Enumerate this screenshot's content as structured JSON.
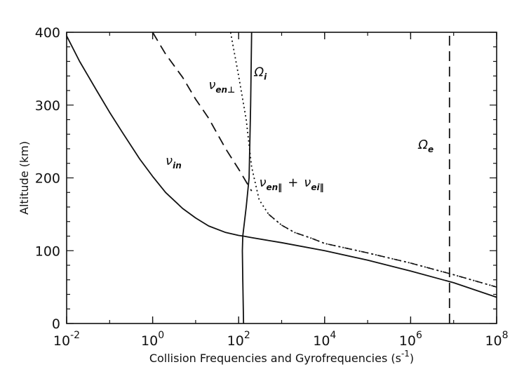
{
  "chart_data": {
    "type": "line",
    "xlabel": "Collision Frequencies and Gyrofrequencies (s",
    "xlabel_sup": "-1",
    "xlabel_close": ")",
    "ylabel": "Altitude (km)",
    "x_scale": "log",
    "xlim": [
      0.01,
      100000000
    ],
    "ylim": [
      0,
      400
    ],
    "x_ticks": [
      {
        "value": 0.01,
        "base": "10",
        "exp": "-2"
      },
      {
        "value": 1,
        "base": "10",
        "exp": "0"
      },
      {
        "value": 100,
        "base": "10",
        "exp": "2"
      },
      {
        "value": 10000,
        "base": "10",
        "exp": "4"
      },
      {
        "value": 1000000,
        "base": "10",
        "exp": "6"
      },
      {
        "value": 100000000,
        "base": "10",
        "exp": "8"
      }
    ],
    "y_ticks": [
      {
        "value": 0,
        "label": "0"
      },
      {
        "value": 100,
        "label": "100"
      },
      {
        "value": 200,
        "label": "200"
      },
      {
        "value": 300,
        "label": "300"
      },
      {
        "value": 400,
        "label": "400"
      }
    ],
    "grid": false,
    "series": [
      {
        "key": "nu_in",
        "label": "ν",
        "label_sub": "in",
        "style": "solid",
        "x": [
          0.01,
          0.02,
          0.05,
          0.1,
          0.2,
          0.5,
          1,
          2,
          5,
          10,
          20,
          50,
          100,
          130,
          200,
          500,
          1000,
          10000,
          100000,
          1000000,
          10000000,
          100000000
        ],
        "y": [
          395,
          360,
          320,
          290,
          262,
          226,
          202,
          180,
          158,
          145,
          134,
          125,
          121,
          120,
          118,
          114,
          111,
          100,
          87,
          72,
          56,
          36
        ]
      },
      {
        "key": "nu_en_perp",
        "label": "ν",
        "label_sub": "en⊥",
        "style": "dashed",
        "x": [
          1,
          2,
          5,
          10,
          20,
          50,
          100,
          200
        ],
        "y": [
          400,
          370,
          338,
          308,
          282,
          240,
          212,
          182
        ]
      },
      {
        "key": "nu_en_par_plus_nu_ei_par",
        "label": "ν",
        "label_sub": "en‖",
        "label2": "+",
        "label3": "ν",
        "label3_sub": "ei‖",
        "style": "dotted",
        "x": [
          65,
          100,
          150,
          200,
          300,
          500,
          1000,
          2000,
          5000,
          10000,
          100000,
          1000000,
          10000000,
          100000000
        ],
        "y": [
          400,
          340,
          280,
          215,
          170,
          150,
          135,
          125,
          117,
          110,
          97,
          83,
          67,
          50
        ]
      },
      {
        "key": "Omega_i",
        "label": "Ω",
        "label_sub": "i",
        "style": "solid",
        "x": [
          130,
          125,
          122,
          125,
          150,
          175,
          190,
          200
        ],
        "y": [
          0,
          60,
          100,
          120,
          160,
          200,
          300,
          400
        ]
      },
      {
        "key": "Omega_e",
        "label": "Ω",
        "label_sub": "e",
        "style": "dashed",
        "x": [
          8000000,
          8000000
        ],
        "y": [
          0,
          400
        ]
      }
    ]
  }
}
